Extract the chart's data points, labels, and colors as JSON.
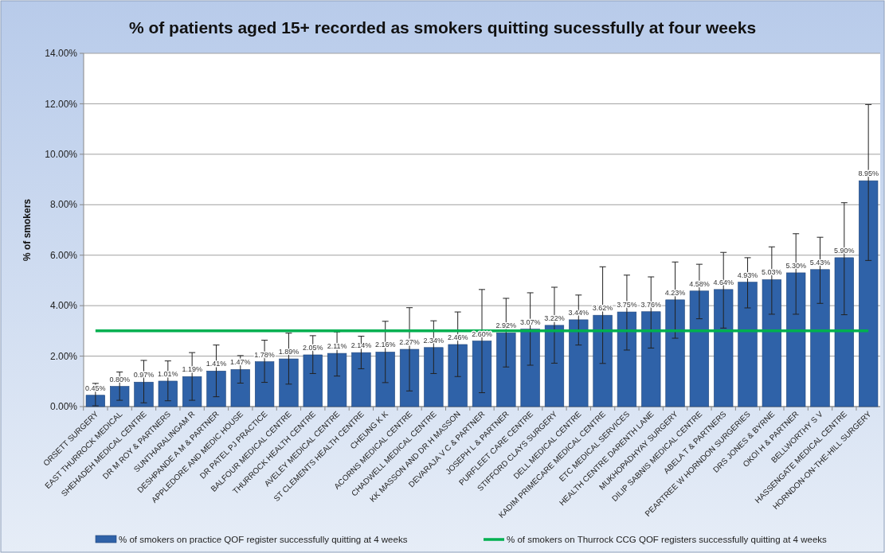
{
  "chart_data": {
    "type": "bar",
    "title": "% of patients aged 15+ recorded as smokers quitting sucessfully at four weeks",
    "ylabel": "% of smokers",
    "categories": [
      "ORSETT SURGERY",
      "EAST THURROCK MEDICAL",
      "SHEHADEH MEDICAL CENTRE",
      "DR M ROY & PARTNERS",
      "SUNTHARALINGAM R",
      "DESHPANDE A M & PARTNER",
      "APPLEDORE AND MEDIC HOUSE",
      "DR PATEL PJ PRACTICE",
      "BALFOUR MEDICAL CENTRE",
      "THURROCK HEALTH CENTRE",
      "AVELEY MEDICAL CENTRE",
      "ST CLEMENTS HEALTH CENTRE",
      "CHEUNG K K",
      "ACORNS MEDICAL CENTRE",
      "CHADWELL MEDICAL CENTRE",
      "KK MASSON AND DR H MASSON",
      "DEVARAJA V C & PARTNER",
      "JOSEPH L & PARTNER",
      "PURFLEET CARE CENTRE",
      "STIFFORD CLAYS SURGERY",
      "DELL MEDICAL CENTRE",
      "KADIM PRIMECARE MEDICAL CENTRE",
      "ETC MEDICAL SERVICES",
      "HEALTH CENTRE DARENTH LANE",
      "MUKHOPADHYAY SURGERY",
      "DILIP SABNIS MEDICAL CENTRE",
      "ABELA T & PARTNERS",
      "PEARTREE W HORNDON SURGERIES",
      "DRS JONES & BYRNE",
      "OKOI H & PARTNER",
      "BELLWORTHY S V",
      "HASSENGATE MEDICAL CENTRE",
      "HORNDON-ON-THE-HILL SURGERY"
    ],
    "series": [
      {
        "name": "% of smokers on practice QOF register successfully quitting at 4 weeks",
        "color": "#2f62a8",
        "values": [
          0.45,
          0.8,
          0.97,
          1.01,
          1.19,
          1.41,
          1.47,
          1.78,
          1.89,
          2.05,
          2.11,
          2.14,
          2.16,
          2.27,
          2.34,
          2.46,
          2.6,
          2.92,
          3.07,
          3.22,
          3.44,
          3.62,
          3.75,
          3.76,
          4.23,
          4.58,
          4.64,
          4.93,
          5.03,
          5.3,
          5.43,
          5.9,
          8.95
        ],
        "value_labels": [
          "0.45%",
          "0.80%",
          "0.97%",
          "1.01%",
          "1.19%",
          "1.41%",
          "1.47%",
          "1.78%",
          "1.89%",
          "2.05%",
          "2.11%",
          "2.14%",
          "2.16%",
          "2.27%",
          "2.34%",
          "2.46%",
          "2.60%",
          "2.92%",
          "3.07%",
          "3.22%",
          "3.44%",
          "3.62%",
          "3.75%",
          "3.76%",
          "4.23%",
          "4.58%",
          "4.64%",
          "4.93%",
          "5.03%",
          "5.30%",
          "5.43%",
          "5.90%",
          "8.95%"
        ],
        "errors": [
          [
            0.03,
            0.92
          ],
          [
            0.25,
            1.37
          ],
          [
            0.15,
            1.83
          ],
          [
            0.23,
            1.81
          ],
          [
            0.25,
            2.14
          ],
          [
            0.39,
            2.44
          ],
          [
            0.93,
            2.02
          ],
          [
            0.96,
            2.63
          ],
          [
            0.89,
            2.91
          ],
          [
            1.31,
            2.81
          ],
          [
            1.21,
            2.96
          ],
          [
            1.5,
            2.79
          ],
          [
            0.95,
            3.38
          ],
          [
            0.62,
            3.92
          ],
          [
            1.31,
            3.4
          ],
          [
            1.19,
            3.75
          ],
          [
            0.55,
            4.64
          ],
          [
            1.57,
            4.29
          ],
          [
            1.64,
            4.51
          ],
          [
            1.72,
            4.73
          ],
          [
            2.44,
            4.42
          ],
          [
            1.71,
            5.54
          ],
          [
            2.24,
            5.21
          ],
          [
            2.32,
            5.14
          ],
          [
            2.71,
            5.73
          ],
          [
            3.48,
            5.64
          ],
          [
            3.11,
            6.11
          ],
          [
            3.91,
            5.9
          ],
          [
            3.66,
            6.33
          ],
          [
            3.66,
            6.85
          ],
          [
            4.09,
            6.71
          ],
          [
            3.64,
            8.08
          ],
          [
            5.79,
            11.97
          ]
        ]
      },
      {
        "name": "% of smokers on Thurrock CCG QOF registers successfully quitting at 4 weeks",
        "type": "line",
        "color": "#00b050",
        "values": [
          3.0,
          3.0,
          3.0,
          3.0,
          3.0,
          3.0,
          3.0,
          3.0,
          3.0,
          3.0,
          3.0,
          3.0,
          3.0,
          3.0,
          3.0,
          3.0,
          3.0,
          3.0,
          3.0,
          3.0,
          3.0,
          3.0,
          3.0,
          3.0,
          3.0,
          3.0,
          3.0,
          3.0,
          3.0,
          3.0,
          3.0,
          3.0,
          3.0
        ]
      }
    ],
    "ylim": [
      0,
      14
    ],
    "yticks": [
      {
        "value": 0,
        "label": "0.00%"
      },
      {
        "value": 2,
        "label": "2.00%"
      },
      {
        "value": 4,
        "label": "4.00%"
      },
      {
        "value": 6,
        "label": "6.00%"
      },
      {
        "value": 8,
        "label": "8.00%"
      },
      {
        "value": 10,
        "label": "10.00%"
      },
      {
        "value": 12,
        "label": "12.00%"
      },
      {
        "value": 14,
        "label": "14.00%"
      }
    ],
    "grid": "y",
    "legend": "bottom",
    "marker": "none"
  }
}
